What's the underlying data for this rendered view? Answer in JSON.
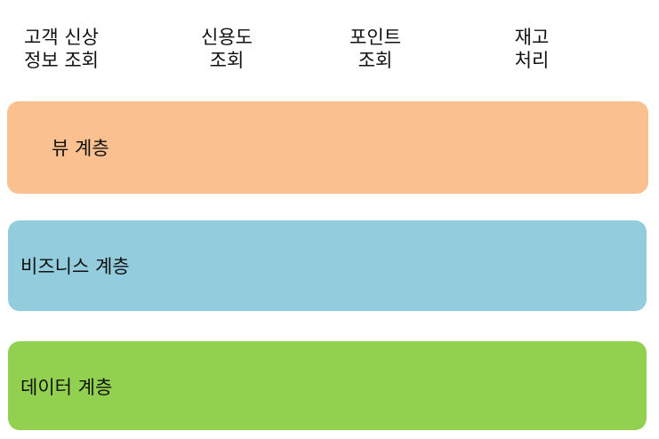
{
  "modules": [
    {
      "line1": "고객 신상",
      "line2": "정보 조회"
    },
    {
      "line1": "신용도",
      "line2": "조회"
    },
    {
      "line1": "포인트",
      "line2": "조회"
    },
    {
      "line1": "재고",
      "line2": "처리"
    }
  ],
  "layers": {
    "view": {
      "label": "뷰 계층",
      "color": "#FAC090"
    },
    "business": {
      "label": "비즈니스 계층",
      "color": "#93CDDD"
    },
    "data": {
      "label": "데이터 계층",
      "color": "#92D050"
    }
  }
}
